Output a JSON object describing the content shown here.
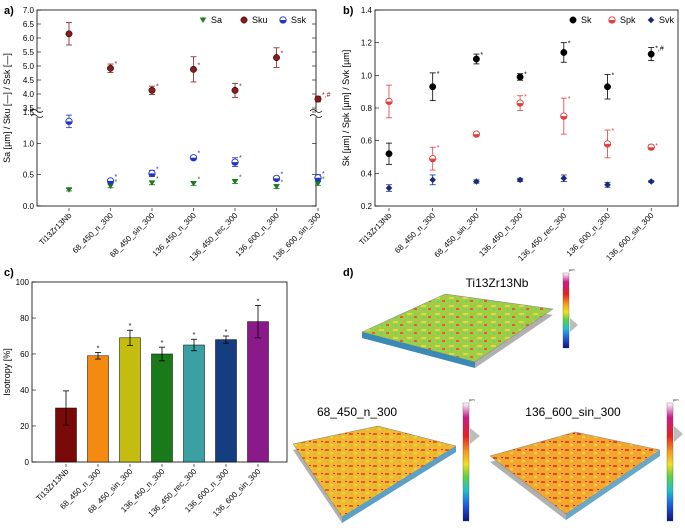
{
  "chart_data": [
    {
      "panel": "a)",
      "type": "scatter",
      "ylabel": "Sa [µm] / Sku [—] / Ssk [—]",
      "categories": [
        "Ti13Zr13Nb",
        "68_450_n_300",
        "68_450_sin_300",
        "136_450_n_300",
        "136_450_rec_300",
        "136_600_n_300",
        "136_600_sin_300"
      ],
      "axis_break": "between 1.5 and 3.5",
      "ylim_lower": [
        0.0,
        1.5
      ],
      "ylim_upper": [
        3.5,
        7.0
      ],
      "yticks": [
        "0.0",
        "0.5",
        "1.0",
        "1.5",
        "3.5",
        "4.0",
        "4.5",
        "5.0",
        "5.5",
        "6.0",
        "6.5",
        "7.0"
      ],
      "series": [
        {
          "name": "Sa",
          "marker": "triangle-down",
          "color": "#1e7a1e",
          "values": [
            0.26,
            0.32,
            0.37,
            0.36,
            0.39,
            0.31,
            0.36
          ],
          "err": [
            0.02,
            0.03,
            0.03,
            0.03,
            0.03,
            0.03,
            0.03
          ],
          "labels": [
            "",
            "*",
            "*",
            "*",
            "*",
            "*",
            "*"
          ]
        },
        {
          "name": "Sku",
          "marker": "circle",
          "color": "#8b1a1a",
          "values": [
            6.15,
            4.92,
            4.13,
            4.88,
            4.13,
            5.3,
            3.82
          ],
          "err": [
            0.4,
            0.15,
            0.15,
            0.45,
            0.25,
            0.35,
            0.1
          ],
          "labels": [
            "",
            "*",
            "*",
            "*",
            "*",
            "*",
            "*,#"
          ]
        },
        {
          "name": "Ssk",
          "marker": "half-circle",
          "color": "#2233cc",
          "values": [
            1.35,
            0.4,
            0.52,
            0.77,
            0.7,
            0.44,
            0.45
          ],
          "err": [
            0.1,
            0.02,
            0.05,
            0.03,
            0.07,
            0.03,
            0.05
          ],
          "labels": [
            "",
            "*",
            "*",
            "*",
            "*",
            "*",
            "*"
          ]
        }
      ]
    },
    {
      "panel": "b)",
      "type": "scatter",
      "ylabel": "Sk [µm] / Spk [µm] / Svk [µm]",
      "categories": [
        "Ti13Zr13Nb",
        "68_450_n_300",
        "68_450_sin_300",
        "136_450_n_300",
        "136_450_rec_300",
        "136_600_n_300",
        "136_600_sin_300"
      ],
      "ylim": [
        0.2,
        1.4
      ],
      "yticks": [
        "0.2",
        "0.4",
        "0.6",
        "0.8",
        "1.0",
        "1.2",
        "1.4"
      ],
      "series": [
        {
          "name": "Sk",
          "marker": "circle",
          "color": "#000000",
          "values": [
            0.52,
            0.93,
            1.1,
            0.99,
            1.14,
            0.93,
            1.13
          ],
          "err": [
            0.065,
            0.085,
            0.03,
            0.02,
            0.06,
            0.075,
            0.04
          ],
          "labels": [
            "",
            "*",
            "*",
            "*",
            "*",
            "*",
            "*,#"
          ]
        },
        {
          "name": "Spk",
          "marker": "half-circle",
          "color": "#e04040",
          "values": [
            0.84,
            0.49,
            0.64,
            0.83,
            0.75,
            0.58,
            0.56
          ],
          "err": [
            0.1,
            0.07,
            0.01,
            0.045,
            0.11,
            0.085,
            0.015
          ],
          "labels": [
            "",
            "*",
            "",
            "*",
            "*",
            "*",
            "*"
          ]
        },
        {
          "name": "Svk",
          "marker": "diamond",
          "color": "#1a2a7a",
          "values": [
            0.31,
            0.36,
            0.35,
            0.36,
            0.37,
            0.33,
            0.35
          ],
          "err": [
            0.02,
            0.03,
            0.01,
            0.01,
            0.02,
            0.015,
            0.005
          ],
          "labels": [
            "",
            "",
            "",
            "",
            "",
            "",
            ""
          ]
        }
      ]
    },
    {
      "panel": "c)",
      "type": "bar",
      "ylabel": "Isotropy [%]",
      "ylim": [
        0,
        100
      ],
      "yticks": [
        "0",
        "20",
        "40",
        "60",
        "80",
        "100"
      ],
      "categories": [
        "Ti13Zr13Nb",
        "68_450_n_300",
        "68_450_sin_300",
        "136_450_n_300",
        "136_450_rec_300",
        "136_600_n_300",
        "136_600_sin_300"
      ],
      "values": [
        30,
        59,
        69,
        60,
        65,
        68,
        78
      ],
      "err": [
        9.5,
        1.8,
        4.2,
        3.8,
        3.2,
        2.0,
        9.0
      ],
      "labels": [
        "",
        "*",
        "*",
        "*",
        "*",
        "*",
        "*"
      ],
      "colors": [
        "#7a0a0a",
        "#f58a10",
        "#c4bc10",
        "#1a7a1a",
        "#3aa0a4",
        "#143e80",
        "#8a1a8a"
      ]
    }
  ],
  "panel_d": {
    "label": "d)",
    "maps": [
      "Ti13Zr13Nb",
      "68_450_n_300",
      "136_600_sin_300"
    ],
    "colorbar_unit": "µm"
  }
}
